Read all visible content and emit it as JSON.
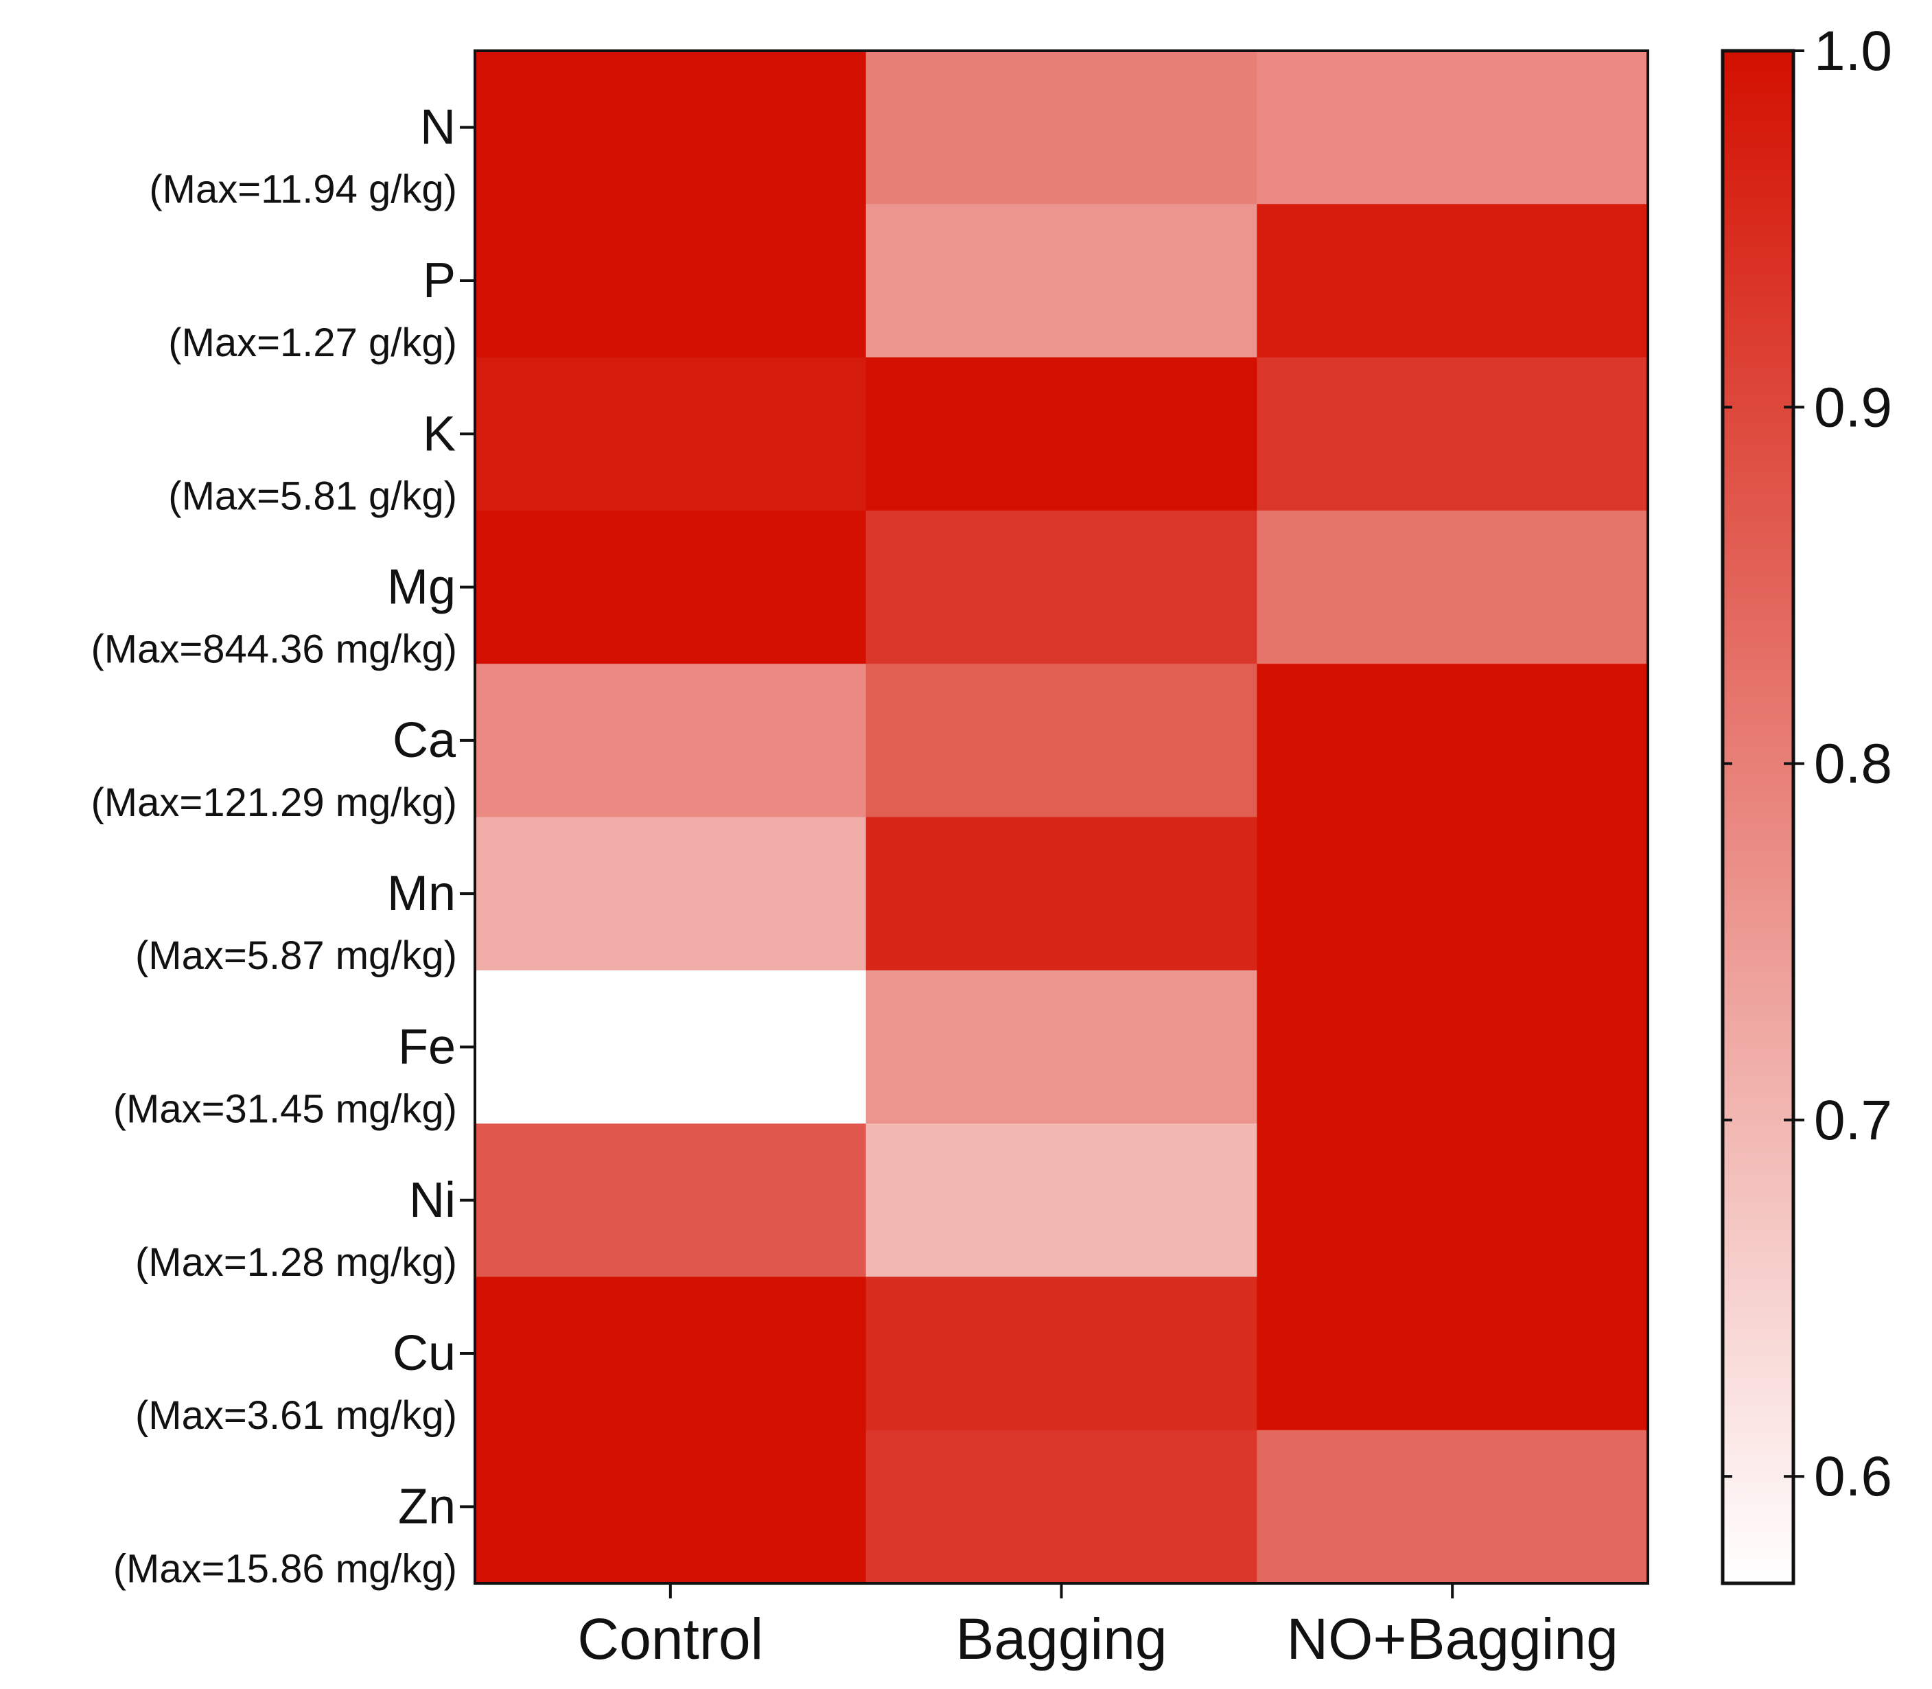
{
  "chart_data": {
    "type": "heatmap",
    "title": "",
    "columns": [
      "Control",
      "Bagging",
      "NO+Bagging"
    ],
    "rows": [
      {
        "element": "N",
        "max_label": "(Max=11.94 g/kg)",
        "values": [
          1.0,
          0.8,
          0.78
        ]
      },
      {
        "element": "P",
        "max_label": "(Max=1.27 g/kg)",
        "values": [
          1.0,
          0.76,
          0.98
        ]
      },
      {
        "element": "K",
        "max_label": "(Max=5.81 g/kg)",
        "values": [
          0.98,
          1.0,
          0.93
        ]
      },
      {
        "element": "Mg",
        "max_label": "(Max=844.36 mg/kg)",
        "values": [
          1.0,
          0.93,
          0.82
        ]
      },
      {
        "element": "Ca",
        "max_label": "(Max=121.29 mg/kg)",
        "values": [
          0.78,
          0.86,
          1.0
        ]
      },
      {
        "element": "Mn",
        "max_label": "(Max=5.87 mg/kg)",
        "values": [
          0.72,
          0.96,
          1.0
        ]
      },
      {
        "element": "Fe",
        "max_label": "(Max=31.45 mg/kg)",
        "values": [
          0.57,
          0.76,
          1.0
        ]
      },
      {
        "element": "Ni",
        "max_label": "(Max=1.28 mg/kg)",
        "values": [
          0.87,
          0.7,
          1.0
        ]
      },
      {
        "element": "Cu",
        "max_label": "(Max=3.61 mg/kg)",
        "values": [
          1.0,
          0.95,
          1.0
        ]
      },
      {
        "element": "Zn",
        "max_label": "(Max=15.86 mg/kg)",
        "values": [
          1.0,
          0.93,
          0.84
        ]
      }
    ],
    "colorbar": {
      "min": 0.57,
      "max": 1.0,
      "ticks": [
        1.0,
        0.9,
        0.8,
        0.7,
        0.6
      ],
      "tick_labels": [
        "1.0",
        "0.9",
        "0.8",
        "0.7",
        "0.6"
      ],
      "low_color": "#ffffff",
      "high_color": "#d31000"
    }
  }
}
